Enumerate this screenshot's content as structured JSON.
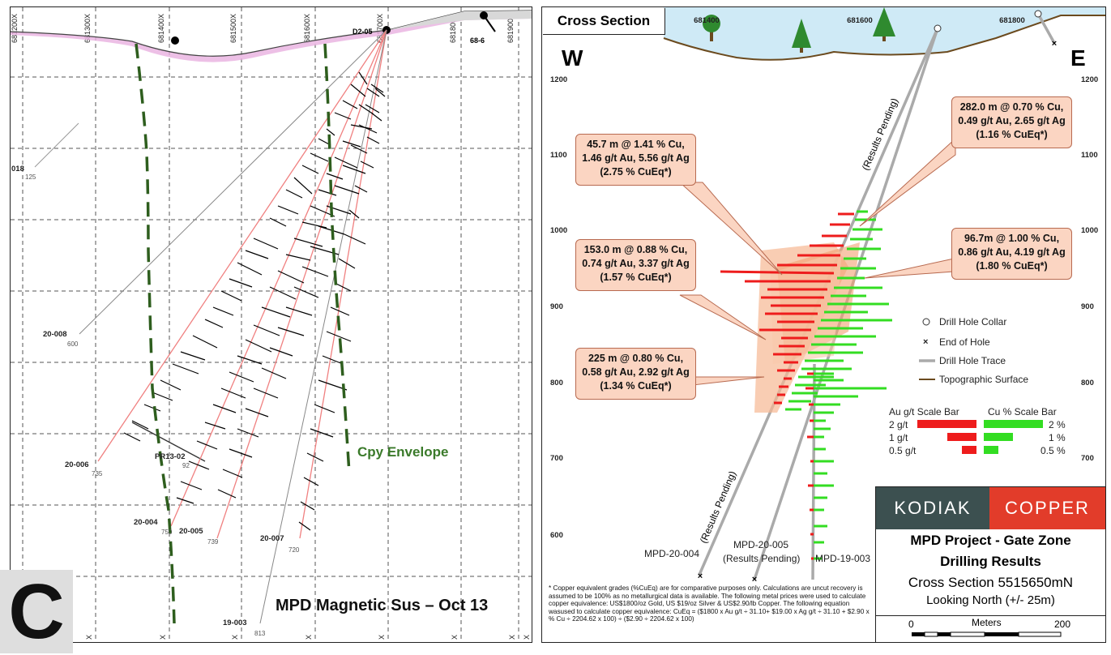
{
  "left": {
    "grid_x_labels": [
      "681200X",
      "681300X",
      "681400X",
      "681500X",
      "681600X",
      "681700X",
      "681800X",
      "681900X"
    ],
    "bottom_x_labels": [
      "X",
      "X",
      "X",
      "X",
      "X",
      "X",
      "X",
      "X"
    ],
    "collar_labels": [
      "D2-05",
      "68-6"
    ],
    "hole_labels": [
      "018",
      "20-008",
      "20-006",
      "PR13-02",
      "20-004",
      "20-005",
      "20-007",
      "19-003"
    ],
    "depth_labels": [
      "125",
      "600",
      "735",
      "92",
      "750",
      "739",
      "720",
      "813"
    ],
    "cpy_label": "Cpy Envelope",
    "title": "MPD Magnetic Sus – Oct 13",
    "panel_letter": "C"
  },
  "right": {
    "title": "Cross Section",
    "west": "W",
    "east": "E",
    "easting_labels": [
      "681400",
      "681600",
      "681800"
    ],
    "elev_labels": [
      "1200",
      "1100",
      "1000",
      "900",
      "800",
      "700",
      "600"
    ],
    "results_pending": "(Results Pending)",
    "hole_labels": {
      "h004": "MPD-20-004",
      "h005_1": "MPD-20-005",
      "h005_2": "(Results Pending)",
      "h003": "MPD-19-003"
    },
    "callouts": [
      {
        "lines": [
          "45.7 m @ 1.41 % Cu,",
          "1.46 g/t Au, 5.56 g/t Ag",
          "(2.75 % CuEq*)"
        ]
      },
      {
        "lines": [
          "153.0 m @ 0.88 % Cu,",
          "0.74 g/t Au, 3.37 g/t Ag",
          "(1.57 % CuEq*)"
        ]
      },
      {
        "lines": [
          "225 m @ 0.80 % Cu,",
          "0.58 g/t Au, 2.92 g/t Ag",
          "(1.34 % CuEq*)"
        ]
      },
      {
        "lines": [
          "282.0 m @ 0.70 % Cu,",
          "0.49 g/t Au, 2.65 g/t Ag",
          "(1.16 % CuEq*)"
        ]
      },
      {
        "lines": [
          "96.7m @ 1.00 % Cu,",
          "0.86 g/t Au, 4.19 g/t Ag",
          "(1.80 % CuEq*)"
        ]
      }
    ],
    "legend": {
      "collar": "Drill Hole Collar",
      "eoh": "End of Hole",
      "trace": "Drill Hole Trace",
      "topo": "Topographic Surface"
    },
    "scale_bar": {
      "au_title": "Au g/t Scale Bar",
      "cu_title": "Cu % Scale Bar",
      "au_labels": [
        "2 g/t",
        "1 g/t",
        "0.5 g/t"
      ],
      "cu_labels": [
        "2 %",
        "1 %",
        "0.5 %"
      ],
      "au_color": "#ee1c1c",
      "cu_color": "#33dd22"
    },
    "logo": {
      "left": "KODIAK",
      "right": "COPPER"
    },
    "project": "MPD Project - Gate Zone",
    "drilling": "Drilling Results",
    "section": "Cross Section 5515650mN",
    "looking": "Looking North (+/- 25m)",
    "meters": "Meters",
    "scale_min": "0",
    "scale_max": "200",
    "footnote": "* Copper equivalent grades (%CuEq) are for comparative purposes only. Calculations are uncut recovery is assumed to be 100% as no metallurgical data is available. The following metal prices were  used to calculate copper equivalence: US$1800/oz Gold, US $19/oz Silver & US$2.90/lb Copper. The following equation wasused to calculate copper equivalence: CuEq = ($1800 x Au g/t ÷ 31.10+ $19.00 x Ag g/t ÷ 31.10 + $2.90 x % Cu ÷ 2204.62 x 100) ÷ ($2.90 ÷ 2204.62 x 100)"
  }
}
